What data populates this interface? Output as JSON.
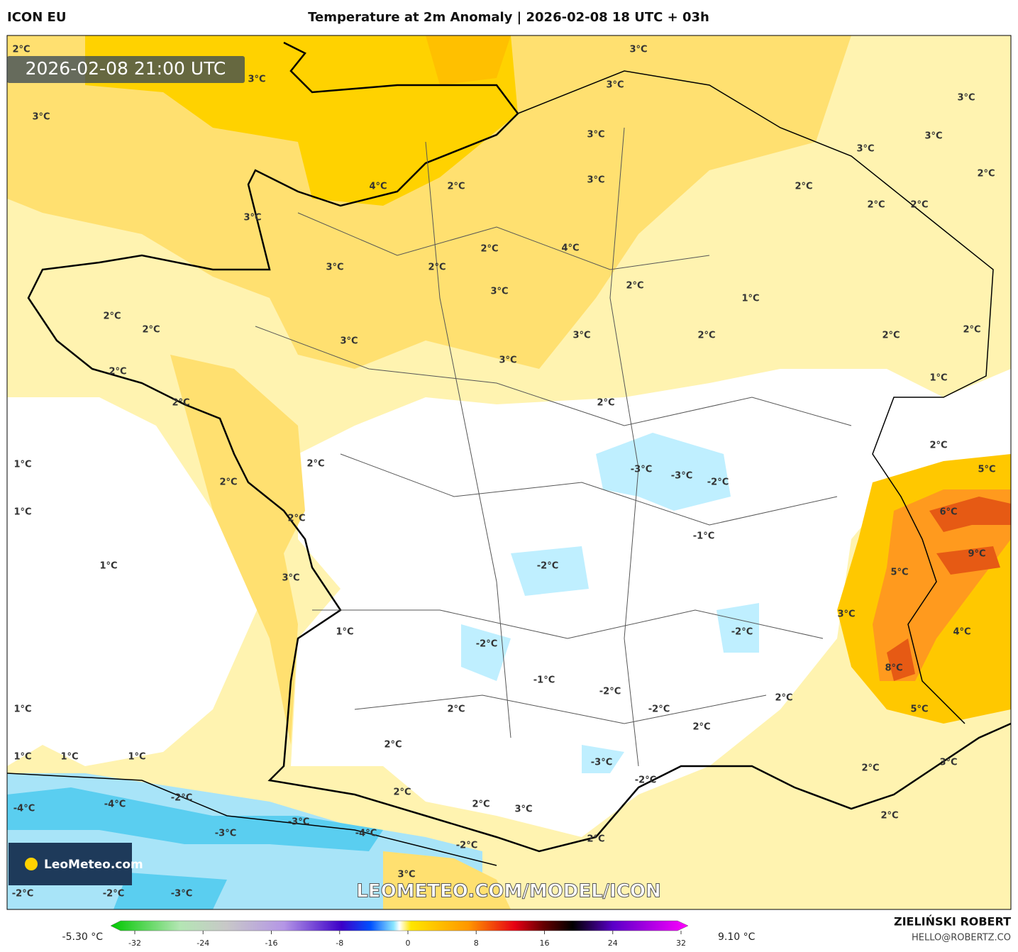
{
  "header": {
    "model": "ICON EU",
    "title": "Temperature at 2m Anomaly | 2026-02-08 18 UTC + 03h"
  },
  "map": {
    "timestamp": "2026-02-08 21:00 UTC",
    "logo": "LeoMeteo.com",
    "watermark": "LEOMETEO.COM/MODEL/ICON",
    "labels": [
      "2°C",
      "3°C",
      "3°C",
      "3°C",
      "3°C",
      "3°C",
      "3°C",
      "3°C",
      "3°C",
      "2°C",
      "4°C",
      "2°C",
      "3°C",
      "2°C",
      "2°C",
      "2°C",
      "3°C",
      "4°C",
      "2°C",
      "3°C",
      "2°C",
      "3°C",
      "2°C",
      "1°C",
      "2°C",
      "2°C",
      "3°C",
      "2°C",
      "2°C",
      "2°C",
      "3°C",
      "3°C",
      "2°C",
      "1°C",
      "2°C",
      "2°C",
      "2°C",
      "1°C",
      "2°C",
      "-3°C",
      "-3°C",
      "-2°C",
      "5°C",
      "2°C",
      "1°C",
      "6°C",
      "2°C",
      "-1°C",
      "9°C",
      "1°C",
      "-2°C",
      "5°C",
      "3°C",
      "3°C",
      "1°C",
      "-2°C",
      "4°C",
      "-2°C",
      "8°C",
      "-1°C",
      "-2°C",
      "2°C",
      "1°C",
      "2°C",
      "-2°C",
      "5°C",
      "2°C",
      "2°C",
      "1°C",
      "1°C",
      "1°C",
      "-3°C",
      "3°C",
      "2°C",
      "-2°C",
      "2°C",
      "-4°C",
      "-4°C",
      "-2°C",
      "2°C",
      "3°C",
      "2°C",
      "-3°C",
      "-3°C",
      "-4°C",
      "2°C",
      "-2°C",
      "3°C",
      "-2°C",
      "-2°C",
      "-3°C"
    ]
  },
  "colorbar": {
    "min": "-5.30 °C",
    "max": "9.10 °C",
    "ticks": [
      -32,
      -24,
      -16,
      -8,
      0,
      8,
      16,
      24,
      32
    ]
  },
  "footer": {
    "author": "ZIELIŃSKI ROBERT",
    "email": "HELLO@ROBERTZ.CO"
  }
}
